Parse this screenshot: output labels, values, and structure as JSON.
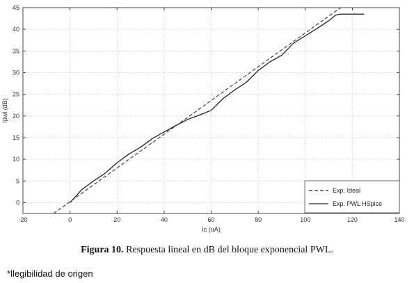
{
  "chart_data": {
    "type": "line",
    "xlabel": "Ic (uA)",
    "ylabel": "Ipwl (dB)",
    "xlim": [
      -20,
      140
    ],
    "ylim": [
      -2.5,
      45
    ],
    "xticks": [
      -20,
      0,
      20,
      40,
      60,
      80,
      100,
      120,
      140
    ],
    "yticks": [
      0,
      5,
      10,
      15,
      20,
      25,
      30,
      35,
      40,
      45
    ],
    "grid": true,
    "legend_position": "bottom-right",
    "series": [
      {
        "name": "Exp. Ideal",
        "style": "dashed",
        "x": [
          -7,
          115
        ],
        "y": [
          -2.5,
          45
        ]
      },
      {
        "name": "Exp. PWL HSpice",
        "style": "solid",
        "x": [
          0,
          5,
          10,
          15,
          20,
          25,
          30,
          35,
          40,
          45,
          50,
          55,
          60,
          65,
          70,
          75,
          80,
          85,
          90,
          95,
          100,
          105,
          110,
          113,
          115,
          120,
          125
        ],
        "y": [
          0,
          3,
          5,
          6.8,
          9.2,
          11.2,
          12.8,
          14.8,
          16.3,
          17.8,
          19.2,
          20.2,
          21.3,
          24,
          26,
          27.8,
          30.5,
          32.5,
          34,
          36.8,
          38.5,
          40.2,
          42,
          43.3,
          43.5,
          43.5,
          43.5
        ]
      }
    ]
  },
  "caption": {
    "label": "Figura 10.",
    "text": " Respuesta lineal en dB del bloque exponencial PWL."
  },
  "note": "*llegibilidad de origen"
}
